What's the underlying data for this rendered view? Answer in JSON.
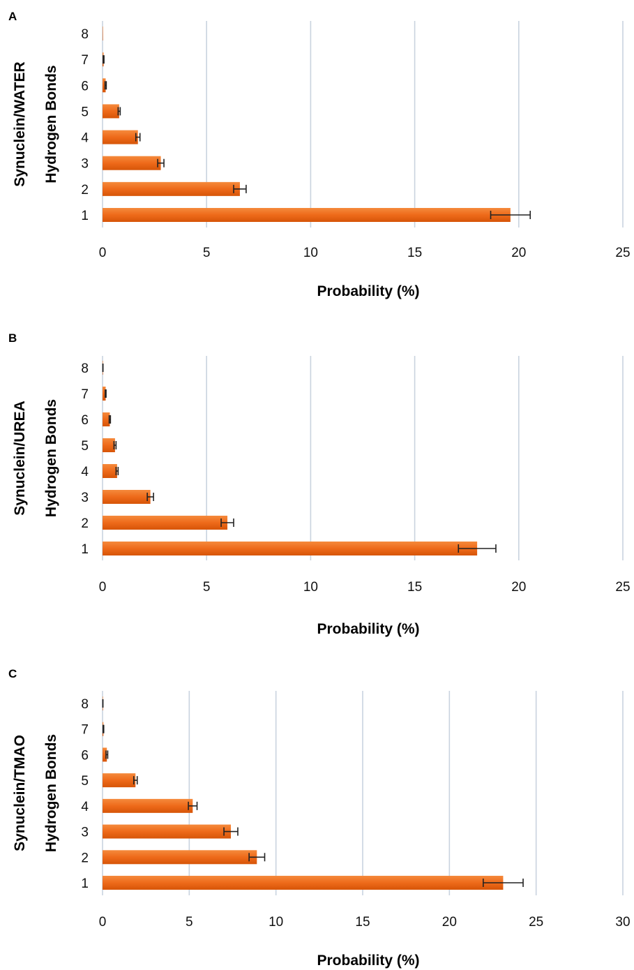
{
  "chart_data": [
    {
      "panel": "A",
      "type": "bar",
      "orientation": "horizontal",
      "ylabel_outer": "Synuclein/WATER",
      "ylabel_inner": "Hydrogen Bonds",
      "xlabel": "Probability (%)",
      "categories": [
        "1",
        "2",
        "3",
        "4",
        "5",
        "6",
        "7",
        "8"
      ],
      "values": [
        19.6,
        6.6,
        2.8,
        1.7,
        0.8,
        0.15,
        0.05,
        0
      ],
      "errors": [
        0.95,
        0.3,
        0.15,
        0.1,
        0.05,
        0.03,
        0.02,
        0
      ],
      "xlim": [
        0,
        25
      ],
      "xticks": [
        0,
        5,
        10,
        15,
        20,
        25
      ],
      "grid": true,
      "color": "#ee6a1a"
    },
    {
      "panel": "B",
      "type": "bar",
      "orientation": "horizontal",
      "ylabel_outer": "Synuclein/UREA",
      "ylabel_inner": "Hydrogen Bonds",
      "xlabel": "Probability (%)",
      "categories": [
        "1",
        "2",
        "3",
        "4",
        "5",
        "6",
        "7",
        "8"
      ],
      "values": [
        18.0,
        6.0,
        2.3,
        0.7,
        0.6,
        0.35,
        0.15,
        0.02
      ],
      "errors": [
        0.9,
        0.3,
        0.15,
        0.05,
        0.05,
        0.03,
        0.02,
        0
      ],
      "xlim": [
        0,
        25
      ],
      "xticks": [
        0,
        5,
        10,
        15,
        20,
        25
      ],
      "grid": true,
      "color": "#ee6a1a"
    },
    {
      "panel": "C",
      "type": "bar",
      "orientation": "horizontal",
      "ylabel_outer": "Synuclein/TMAO",
      "ylabel_inner": "Hydrogen Bonds",
      "xlabel": "Probability (%)",
      "categories": [
        "1",
        "2",
        "3",
        "4",
        "5",
        "6",
        "7",
        "8"
      ],
      "values": [
        23.1,
        8.9,
        7.4,
        5.2,
        1.9,
        0.25,
        0.05,
        0.02
      ],
      "errors": [
        1.15,
        0.45,
        0.4,
        0.25,
        0.1,
        0.05,
        0.02,
        0
      ],
      "xlim": [
        0,
        30
      ],
      "xticks": [
        0,
        5,
        10,
        15,
        20,
        25,
        30
      ],
      "grid": true,
      "color": "#ee6a1a"
    }
  ]
}
